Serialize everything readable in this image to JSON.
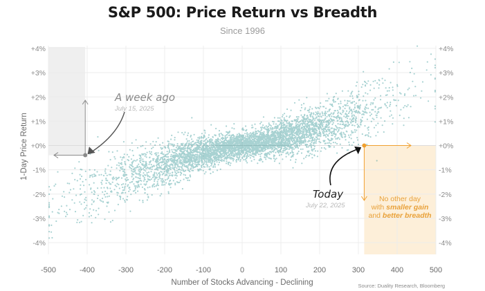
{
  "header": {
    "title": "S&P 500: Price Return vs Breadth",
    "subtitle": "Since 1996"
  },
  "source": "Source: Duality Research, Bloomberg",
  "colors": {
    "points": "#1a8a8a",
    "highlight": "#f0a030",
    "highlight_fill": "#fdecd2",
    "week_ago": "#8a8a8a",
    "week_ago_fill": "#ececec"
  },
  "annotations": {
    "week_ago": {
      "label": "A week ago",
      "date": "July 15, 2025"
    },
    "today": {
      "label": "Today",
      "date": "July 22, 2025"
    },
    "note": {
      "line1": "No other day",
      "line2_a": "with ",
      "line2_b": "smaller gain",
      "line3_a": "and ",
      "line3_b": "better breadth"
    }
  },
  "chart_data": {
    "type": "scatter",
    "title": "S&P 500: Price Return vs Breadth",
    "subtitle": "Since 1996",
    "xlabel": "Number of Stocks Advancing - Declining",
    "ylabel": "1-Day Price Return",
    "xlim": [
      -500,
      500
    ],
    "ylim": [
      -4.5,
      4.3
    ],
    "x_ticks": [
      "-500",
      "-400",
      "-300",
      "-200",
      "-100",
      "0",
      "100",
      "200",
      "300",
      "400",
      "500"
    ],
    "y_ticks": [
      "+4%",
      "+3%",
      "+2%",
      "+1%",
      "+0%",
      "-1%",
      "-2%",
      "-3%",
      "-4%"
    ],
    "grid": true,
    "trend": {
      "slope_pct_per_100": 0.5,
      "intercept_pct": 0.0,
      "approx_points": 5000
    },
    "highlighted_points": [
      {
        "name": "A week ago",
        "date": "July 15, 2025",
        "x": -405,
        "y": -0.4
      },
      {
        "name": "Today",
        "date": "July 22, 2025",
        "x": 315,
        "y": 0.0
      }
    ]
  }
}
